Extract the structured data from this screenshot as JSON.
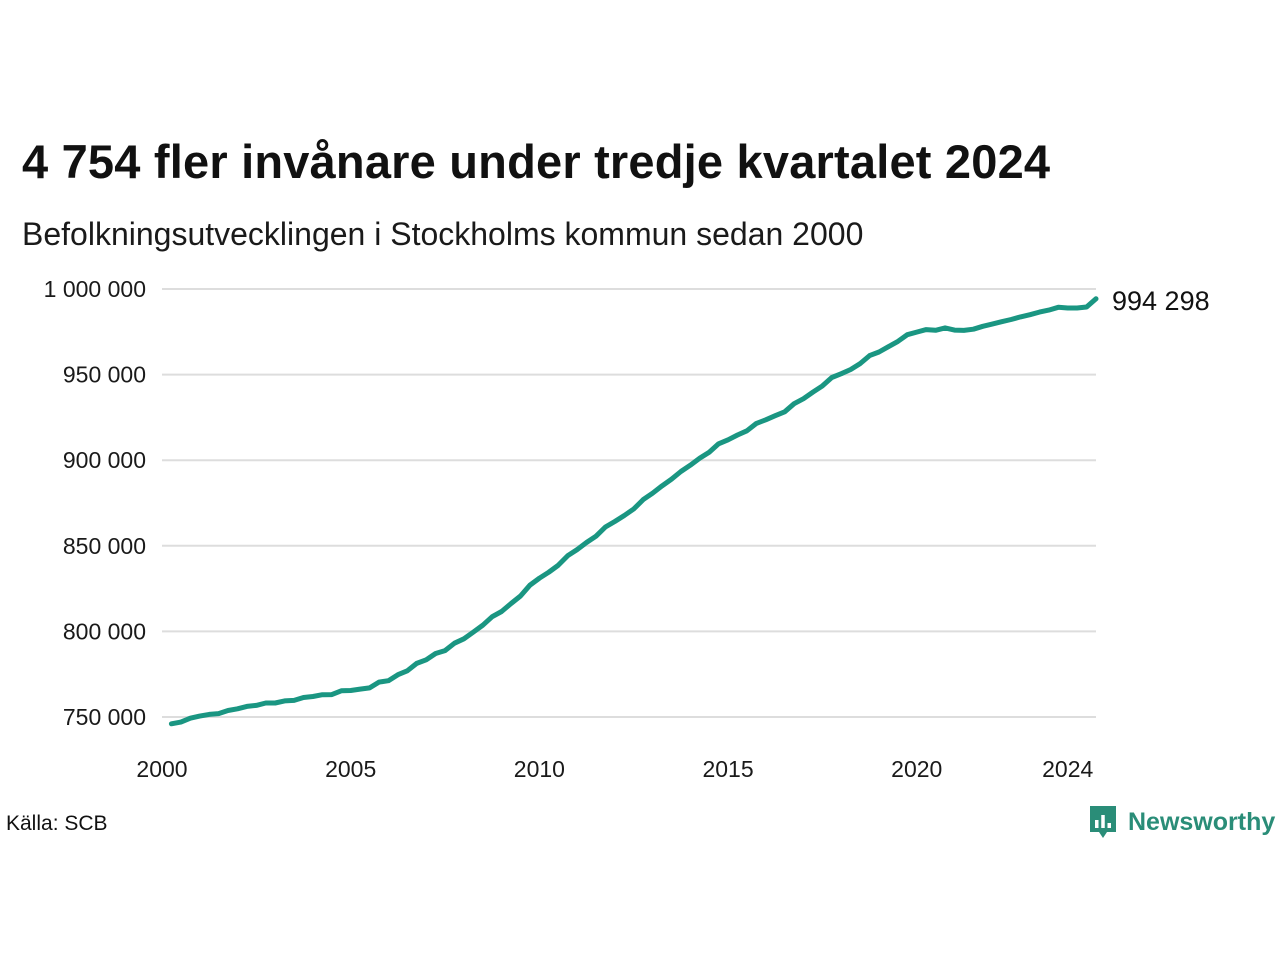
{
  "title": "4 754 fler invånare under tredje kvartalet 2024",
  "subtitle": "Befolkningsutvecklingen i Stockholms kommun sedan 2000",
  "source": "Källa: SCB",
  "brand": {
    "name": "Newsworthy",
    "icon": "newsworthy-logo-icon",
    "color": "#2a8d78"
  },
  "colors": {
    "line": "#1a9682",
    "grid": "#dddddd"
  },
  "chart_data": {
    "type": "line",
    "title": "4 754 fler invånare under tredje kvartalet 2024",
    "subtitle": "Befolkningsutvecklingen i Stockholms kommun sedan 2000",
    "xlabel": "",
    "ylabel": "",
    "xlim": [
      2000.0,
      2024.75
    ],
    "ylim": [
      750000,
      1000000
    ],
    "x_ticks": [
      2000,
      2005,
      2010,
      2015,
      2020,
      2024
    ],
    "x_tick_labels": [
      "2000",
      "2005",
      "2010",
      "2015",
      "2020",
      "2024"
    ],
    "y_ticks": [
      750000,
      800000,
      850000,
      900000,
      950000,
      1000000
    ],
    "y_tick_labels": [
      "750 000",
      "800 000",
      "850 000",
      "900 000",
      "950 000",
      "1 000 000"
    ],
    "grid": true,
    "legend": "none",
    "end_label": "994 298",
    "series": [
      {
        "x": [
          2000.25,
          2000.5,
          2000.75,
          2001.0,
          2001.25,
          2001.5,
          2001.75,
          2002.0,
          2002.25,
          2002.5,
          2002.75,
          2003.0,
          2003.25,
          2003.5,
          2003.75,
          2004.0,
          2004.25,
          2004.5,
          2004.75,
          2005.0,
          2005.25,
          2005.5,
          2005.75,
          2006.0,
          2006.25,
          2006.5,
          2006.75,
          2007.0,
          2007.25,
          2007.5,
          2007.75,
          2008.0,
          2008.25,
          2008.5,
          2008.75,
          2009.0,
          2009.25,
          2009.5,
          2009.75,
          2010.0,
          2010.25,
          2010.5,
          2010.75,
          2011.0,
          2011.25,
          2011.5,
          2011.75,
          2012.0,
          2012.25,
          2012.5,
          2012.75,
          2013.0,
          2013.25,
          2013.5,
          2013.75,
          2014.0,
          2014.25,
          2014.5,
          2014.75,
          2015.0,
          2015.25,
          2015.5,
          2015.75,
          2016.0,
          2016.25,
          2016.5,
          2016.75,
          2017.0,
          2017.25,
          2017.5,
          2017.75,
          2018.0,
          2018.25,
          2018.5,
          2018.75,
          2019.0,
          2019.25,
          2019.5,
          2019.75,
          2020.0,
          2020.25,
          2020.5,
          2020.75,
          2021.0,
          2021.25,
          2021.5,
          2021.75,
          2022.0,
          2022.25,
          2022.5,
          2022.75,
          2023.0,
          2023.25,
          2023.5,
          2023.75,
          2024.0,
          2024.25,
          2024.5,
          2024.75
        ],
        "values": [
          746000,
          747000,
          749300,
          750500,
          751500,
          752000,
          753800,
          754800,
          756200,
          756800,
          758200,
          758200,
          759400,
          759700,
          761400,
          762000,
          763000,
          763100,
          765300,
          765500,
          766300,
          767000,
          770400,
          771200,
          774700,
          777000,
          781300,
          783400,
          787100,
          788800,
          793100,
          795700,
          799600,
          803600,
          808600,
          811600,
          816300,
          820700,
          827000,
          831100,
          834600,
          838600,
          844200,
          847800,
          851900,
          855600,
          861000,
          864200,
          867700,
          871500,
          877000,
          880700,
          885000,
          888900,
          893400,
          897100,
          901200,
          904700,
          909600,
          911900,
          914700,
          917200,
          921500,
          923600,
          926000,
          928300,
          933000,
          935900,
          939800,
          943400,
          948300,
          950500,
          953000,
          956400,
          961100,
          963200,
          966300,
          969400,
          973300,
          974800,
          976300,
          975900,
          977300,
          976000,
          975800,
          976500,
          978200,
          979500,
          980900,
          982200,
          983700,
          985000,
          986500,
          987700,
          989300,
          988900,
          988900,
          989500,
          994298
        ]
      }
    ]
  }
}
